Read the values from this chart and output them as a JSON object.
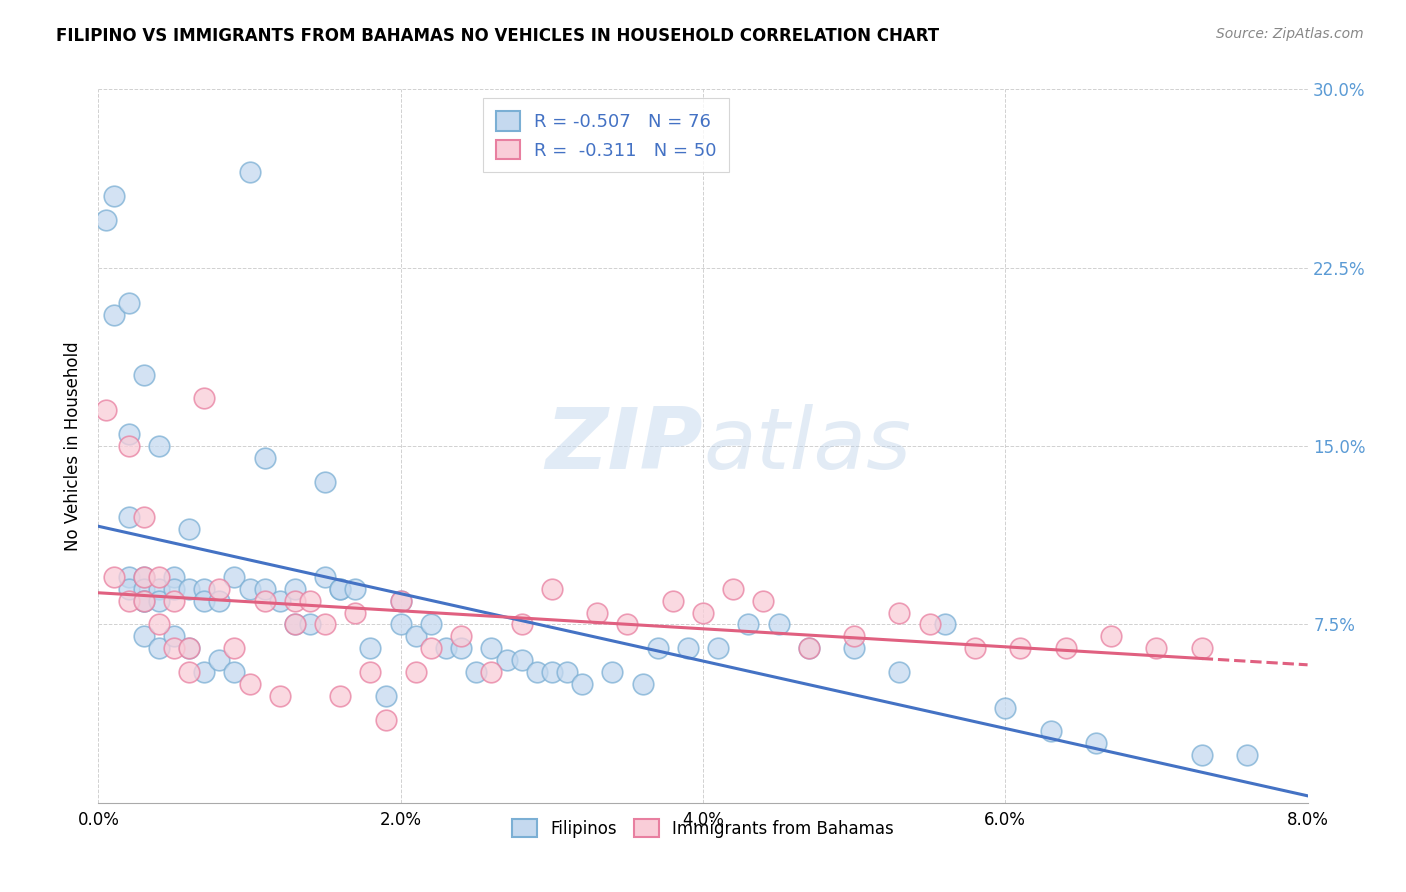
{
  "title": "FILIPINO VS IMMIGRANTS FROM BAHAMAS NO VEHICLES IN HOUSEHOLD CORRELATION CHART",
  "source": "Source: ZipAtlas.com",
  "ylabel": "No Vehicles in Household",
  "xlim": [
    0.0,
    0.08
  ],
  "ylim": [
    0.0,
    0.3
  ],
  "xticks": [
    0.0,
    0.02,
    0.04,
    0.06,
    0.08
  ],
  "yticks": [
    0.0,
    0.075,
    0.15,
    0.225,
    0.3
  ],
  "xticklabels": [
    "0.0%",
    "2.0%",
    "4.0%",
    "6.0%",
    "8.0%"
  ],
  "yticklabels": [
    "",
    "7.5%",
    "15.0%",
    "22.5%",
    "30.0%"
  ],
  "legend_labels": [
    "Filipinos",
    "Immigrants from Bahamas"
  ],
  "r_filipino": -0.507,
  "n_filipino": 76,
  "r_bahamas": -0.311,
  "n_bahamas": 50,
  "color_filipino_face": "#c5d9ef",
  "color_filipino_edge": "#7bafd4",
  "color_bahamas_face": "#f9cdd8",
  "color_bahamas_edge": "#e87fa0",
  "color_line_filipino": "#4472c4",
  "color_line_bahamas": "#e06080",
  "color_axis_right": "#5b9bd5",
  "color_text_blue": "#4472c4",
  "watermark_color": "#d0dce8",
  "filipino_x": [
    0.0005,
    0.001,
    0.001,
    0.002,
    0.002,
    0.002,
    0.002,
    0.002,
    0.003,
    0.003,
    0.003,
    0.003,
    0.003,
    0.003,
    0.004,
    0.004,
    0.004,
    0.004,
    0.005,
    0.005,
    0.005,
    0.006,
    0.006,
    0.006,
    0.007,
    0.007,
    0.007,
    0.008,
    0.008,
    0.009,
    0.009,
    0.01,
    0.01,
    0.011,
    0.011,
    0.012,
    0.013,
    0.013,
    0.014,
    0.015,
    0.015,
    0.016,
    0.016,
    0.017,
    0.018,
    0.019,
    0.02,
    0.02,
    0.021,
    0.022,
    0.023,
    0.024,
    0.025,
    0.026,
    0.027,
    0.028,
    0.029,
    0.03,
    0.031,
    0.032,
    0.034,
    0.036,
    0.037,
    0.039,
    0.041,
    0.043,
    0.045,
    0.047,
    0.05,
    0.053,
    0.056,
    0.06,
    0.063,
    0.066,
    0.073,
    0.076
  ],
  "filipino_y": [
    0.245,
    0.255,
    0.205,
    0.21,
    0.155,
    0.12,
    0.095,
    0.09,
    0.18,
    0.095,
    0.09,
    0.085,
    0.085,
    0.07,
    0.15,
    0.09,
    0.085,
    0.065,
    0.095,
    0.09,
    0.07,
    0.115,
    0.09,
    0.065,
    0.09,
    0.085,
    0.055,
    0.085,
    0.06,
    0.095,
    0.055,
    0.265,
    0.09,
    0.145,
    0.09,
    0.085,
    0.09,
    0.075,
    0.075,
    0.135,
    0.095,
    0.09,
    0.09,
    0.09,
    0.065,
    0.045,
    0.085,
    0.075,
    0.07,
    0.075,
    0.065,
    0.065,
    0.055,
    0.065,
    0.06,
    0.06,
    0.055,
    0.055,
    0.055,
    0.05,
    0.055,
    0.05,
    0.065,
    0.065,
    0.065,
    0.075,
    0.075,
    0.065,
    0.065,
    0.055,
    0.075,
    0.04,
    0.03,
    0.025,
    0.02,
    0.02
  ],
  "bahamas_x": [
    0.0005,
    0.001,
    0.002,
    0.002,
    0.003,
    0.003,
    0.003,
    0.004,
    0.004,
    0.005,
    0.005,
    0.006,
    0.006,
    0.007,
    0.008,
    0.009,
    0.01,
    0.011,
    0.012,
    0.013,
    0.013,
    0.014,
    0.015,
    0.016,
    0.017,
    0.018,
    0.019,
    0.02,
    0.021,
    0.022,
    0.024,
    0.026,
    0.028,
    0.03,
    0.033,
    0.035,
    0.038,
    0.04,
    0.042,
    0.044,
    0.047,
    0.05,
    0.053,
    0.055,
    0.058,
    0.061,
    0.064,
    0.067,
    0.07,
    0.073
  ],
  "bahamas_y": [
    0.165,
    0.095,
    0.15,
    0.085,
    0.12,
    0.095,
    0.085,
    0.095,
    0.075,
    0.085,
    0.065,
    0.065,
    0.055,
    0.17,
    0.09,
    0.065,
    0.05,
    0.085,
    0.045,
    0.085,
    0.075,
    0.085,
    0.075,
    0.045,
    0.08,
    0.055,
    0.035,
    0.085,
    0.055,
    0.065,
    0.07,
    0.055,
    0.075,
    0.09,
    0.08,
    0.075,
    0.085,
    0.08,
    0.09,
    0.085,
    0.065,
    0.07,
    0.08,
    0.075,
    0.065,
    0.065,
    0.065,
    0.07,
    0.065,
    0.065
  ]
}
